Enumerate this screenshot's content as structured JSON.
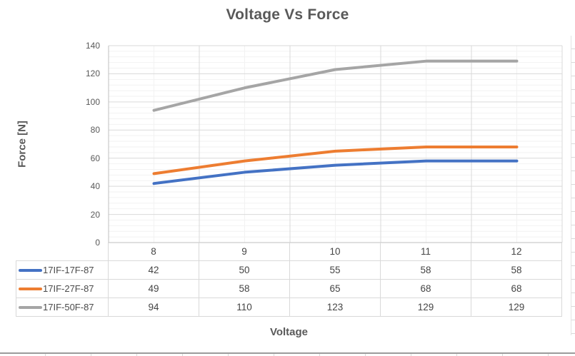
{
  "chart_data": {
    "type": "line",
    "title": "Voltage Vs Force",
    "xlabel": "Voltage",
    "ylabel": "Force [N]",
    "x": [
      8,
      9,
      10,
      11,
      12
    ],
    "series": [
      {
        "name": "17IF-17F-87",
        "color": "#4472C4",
        "values": [
          42,
          50,
          55,
          58,
          58
        ]
      },
      {
        "name": "17IF-27F-87",
        "color": "#ED7D31",
        "values": [
          49,
          58,
          65,
          68,
          68
        ]
      },
      {
        "name": "17IF-50F-87",
        "color": "#A5A5A5",
        "values": [
          94,
          110,
          123,
          129,
          129
        ]
      }
    ],
    "y_axis": {
      "min": 0,
      "max": 140,
      "major_unit": 20,
      "minor_unit": 4,
      "ticks": [
        0,
        20,
        40,
        60,
        80,
        100,
        120,
        140
      ]
    },
    "grid": {
      "major": true,
      "minor": true
    },
    "legend_position": "data-table-left"
  },
  "theme": {
    "title_color": "#595959",
    "axis_text_color": "#595959",
    "table_text_color": "#454545",
    "major_grid_color": "#D9D9D9",
    "minor_grid_color": "#F2F2F2",
    "axis_line_color": "#BFBFBF"
  }
}
